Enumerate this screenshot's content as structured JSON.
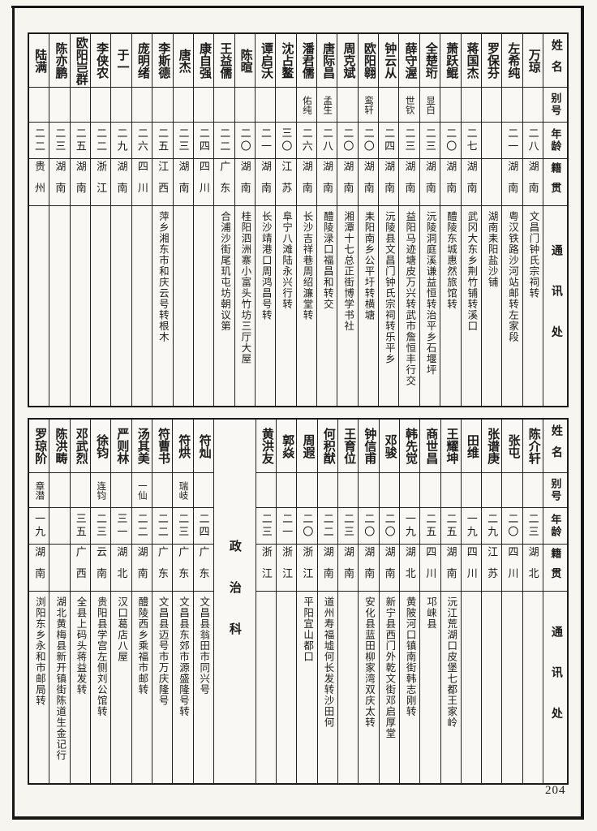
{
  "page": {
    "number": "204"
  },
  "tables": [
    {
      "headers": {
        "name": "姓名",
        "byname": "别号",
        "age": "年龄",
        "origin": "籍贯",
        "address": "通讯处"
      },
      "entries": [
        {
          "name": "万琼",
          "byname": "",
          "age": "二八",
          "origin": "湖南",
          "address": "文昌门钟氏宗祠转"
        },
        {
          "name": "左希纯",
          "byname": "",
          "age": "二一",
          "origin": "湖南",
          "address": "粤汉铁路沙河站邮转左家段"
        },
        {
          "name": "罗保芬",
          "byname": "",
          "age": "",
          "origin": "",
          "address": "湖南耒阳盐沙铺"
        },
        {
          "name": "蒋国杰",
          "byname": "",
          "age": "二七",
          "origin": "湖南",
          "address": "武冈大东乡荆竹铺转溪口"
        },
        {
          "name": "萧跃鲲",
          "byname": "",
          "age": "二〇",
          "origin": "湖南",
          "address": "醴陵东城惠然旅馆转"
        },
        {
          "name": "全楚珩",
          "byname": "显白",
          "age": "二三",
          "origin": "湖南",
          "address": "沅陵洞庭溪谦益恒转治平乡石堰坪"
        },
        {
          "name": "薛守渥",
          "byname": "世钦",
          "age": "二三",
          "origin": "湖南",
          "address": "益阳马迹塘皮万兴转武市詹恒丰行交"
        },
        {
          "name": "钟云从",
          "byname": "",
          "age": "二四",
          "origin": "湖南",
          "address": "沅陵县文昌门钟氏宗祠转乐平乡"
        },
        {
          "name": "欧阳翱",
          "byname": "鸾轩",
          "age": "二〇",
          "origin": "湖南",
          "address": "耒阳南乡公平圩转横塘"
        },
        {
          "name": "周克斌",
          "byname": "",
          "age": "二〇",
          "origin": "湖南",
          "address": "湘潭十七总正街博学书社"
        },
        {
          "name": "唐际昌",
          "byname": "孟生",
          "age": "二八",
          "origin": "湖南",
          "address": "醴陵渌口福昌和转交"
        },
        {
          "name": "潘君儒",
          "byname": "佑纯",
          "age": "二六",
          "origin": "湖南",
          "address": "长沙吉祥巷周绍濂堂转"
        },
        {
          "name": "沈占鳌",
          "byname": "",
          "age": "三〇",
          "origin": "江苏",
          "address": "阜宁八滩陆永兴行转"
        },
        {
          "name": "谭启沃",
          "byname": "",
          "age": "二一",
          "origin": "湖南",
          "address": "长沙靖港口周鸿昌号转"
        },
        {
          "name": "陈暄",
          "byname": "",
          "age": "二〇",
          "origin": "湖南",
          "address": "桂阳泗洲寨小富头竹坊三厅大屋"
        },
        {
          "name": "王益儒",
          "byname": "",
          "age": "二二",
          "origin": "广东",
          "address": "合浦沙街尾玑屯坊朝议第"
        },
        {
          "name": "康自强",
          "byname": "",
          "age": "二四",
          "origin": "四川",
          "address": ""
        },
        {
          "name": "唐杰",
          "byname": "",
          "age": "二三",
          "origin": "湖南",
          "address": ""
        },
        {
          "name": "李斯德",
          "byname": "",
          "age": "二五",
          "origin": "江西",
          "address": "萍乡湘东市和庆云号转根木"
        },
        {
          "name": "庞明绪",
          "byname": "",
          "age": "二六",
          "origin": "四川",
          "address": ""
        },
        {
          "name": "于一",
          "byname": "",
          "age": "二九",
          "origin": "湖南",
          "address": ""
        },
        {
          "name": "李侠农",
          "byname": "",
          "age": "二二",
          "origin": "浙江",
          "address": ""
        },
        {
          "name": "欧阳岂群",
          "byname": "",
          "age": "二五",
          "origin": "湖南",
          "address": ""
        },
        {
          "name": "陈亦鹏",
          "byname": "",
          "age": "二三",
          "origin": "湖南",
          "address": ""
        },
        {
          "name": "陆满",
          "byname": "",
          "age": "二二",
          "origin": "贵州",
          "address": ""
        }
      ]
    },
    {
      "headers": {
        "name": "姓名",
        "byname": "别号",
        "age": "年龄",
        "origin": "籍贯",
        "address": "通讯处"
      },
      "section": {
        "label": "政治科",
        "before_entry": 14
      },
      "entries": [
        {
          "name": "陈介轩",
          "byname": "",
          "age": "二三",
          "origin": "湖北",
          "address": ""
        },
        {
          "name": "张屯",
          "byname": "",
          "age": "二〇",
          "origin": "四川",
          "address": ""
        },
        {
          "name": "张谱庚",
          "byname": "",
          "age": "二九",
          "origin": "江苏",
          "address": ""
        },
        {
          "name": "田维",
          "byname": "",
          "age": "一九",
          "origin": "四川",
          "address": ""
        },
        {
          "name": "王耀坤",
          "byname": "",
          "age": "二五",
          "origin": "湖南",
          "address": "沅江荒湖口皮堡七都王家岭"
        },
        {
          "name": "商世昌",
          "byname": "",
          "age": "二五",
          "origin": "四川",
          "address": "邛崃县"
        },
        {
          "name": "韩先觉",
          "byname": "",
          "age": "一九",
          "origin": "湖北",
          "address": "黄陂河口镇南街韩志刚转"
        },
        {
          "name": "邓骏",
          "byname": "",
          "age": "二〇",
          "origin": "湖南",
          "address": "新宁县西门外乾文街邓启厚堂"
        },
        {
          "name": "钟信甫",
          "byname": "",
          "age": "二〇",
          "origin": "湖南",
          "address": "安化县蓝田柳家湾双庆太转"
        },
        {
          "name": "王育位",
          "byname": "",
          "age": "二三",
          "origin": "湖南",
          "address": ""
        },
        {
          "name": "何积猷",
          "byname": "",
          "age": "二二",
          "origin": "湖南",
          "address": "道州寿福墟何长发转沙田何"
        },
        {
          "name": "周遐",
          "byname": "",
          "age": "二〇",
          "origin": "浙江",
          "address": "平阳宜山都口"
        },
        {
          "name": "郭焱",
          "byname": "",
          "age": "二一",
          "origin": "浙江",
          "address": ""
        },
        {
          "name": "黄洪友",
          "byname": "",
          "age": "二三",
          "origin": "浙江",
          "address": ""
        },
        {
          "name": "符灿",
          "byname": "",
          "age": "二四",
          "origin": "广东",
          "address": "文昌县翁田市同兴号"
        },
        {
          "name": "符烘",
          "byname": "瑞岐",
          "age": "二三",
          "origin": "广东",
          "address": "文昌县东郊市源盛隆号转"
        },
        {
          "name": "符曹书",
          "byname": "",
          "age": "二二",
          "origin": "广东",
          "address": "文昌县迈号市万庆隆号"
        },
        {
          "name": "汤其美",
          "byname": "一仙",
          "age": "二二",
          "origin": "湖南",
          "address": "醴陵西乡乘福市邮转"
        },
        {
          "name": "严则林",
          "byname": "",
          "age": "三一",
          "origin": "湖北",
          "address": "汉口葛店八屋"
        },
        {
          "name": "徐钧",
          "byname": "连钧",
          "age": "二三",
          "origin": "云南",
          "address": "贵阳县学宫左侧刘公馆转"
        },
        {
          "name": "邓武烈",
          "byname": "",
          "age": "三五",
          "origin": "广西",
          "address": "全县上码头蒋益发转"
        },
        {
          "name": "陈洪畴",
          "byname": "",
          "age": "",
          "origin": "",
          "address": "湖北黄梅县新开镇街陈道生金记行"
        },
        {
          "name": "罗琼阶",
          "byname": "章潜",
          "age": "一九",
          "origin": "湖南",
          "address": "浏阳东乡永和市邮局转"
        }
      ]
    }
  ]
}
